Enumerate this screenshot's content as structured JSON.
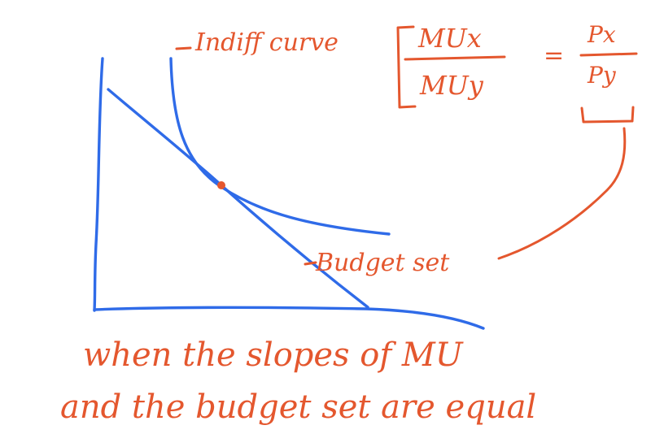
{
  "labels": {
    "indifference_curve": "Indiff curve",
    "budget_set": "Budget set"
  },
  "formula": {
    "left_numerator": "MUx",
    "left_denominator": "MUy",
    "equals": "=",
    "right_numerator": "Px",
    "right_denominator": "Py"
  },
  "caption": {
    "line1": "when the slopes of MU",
    "line2": "and the budget set are equal"
  },
  "colors": {
    "axis_ink": "#2f6be8",
    "annotation_ink": "#e4572e"
  }
}
